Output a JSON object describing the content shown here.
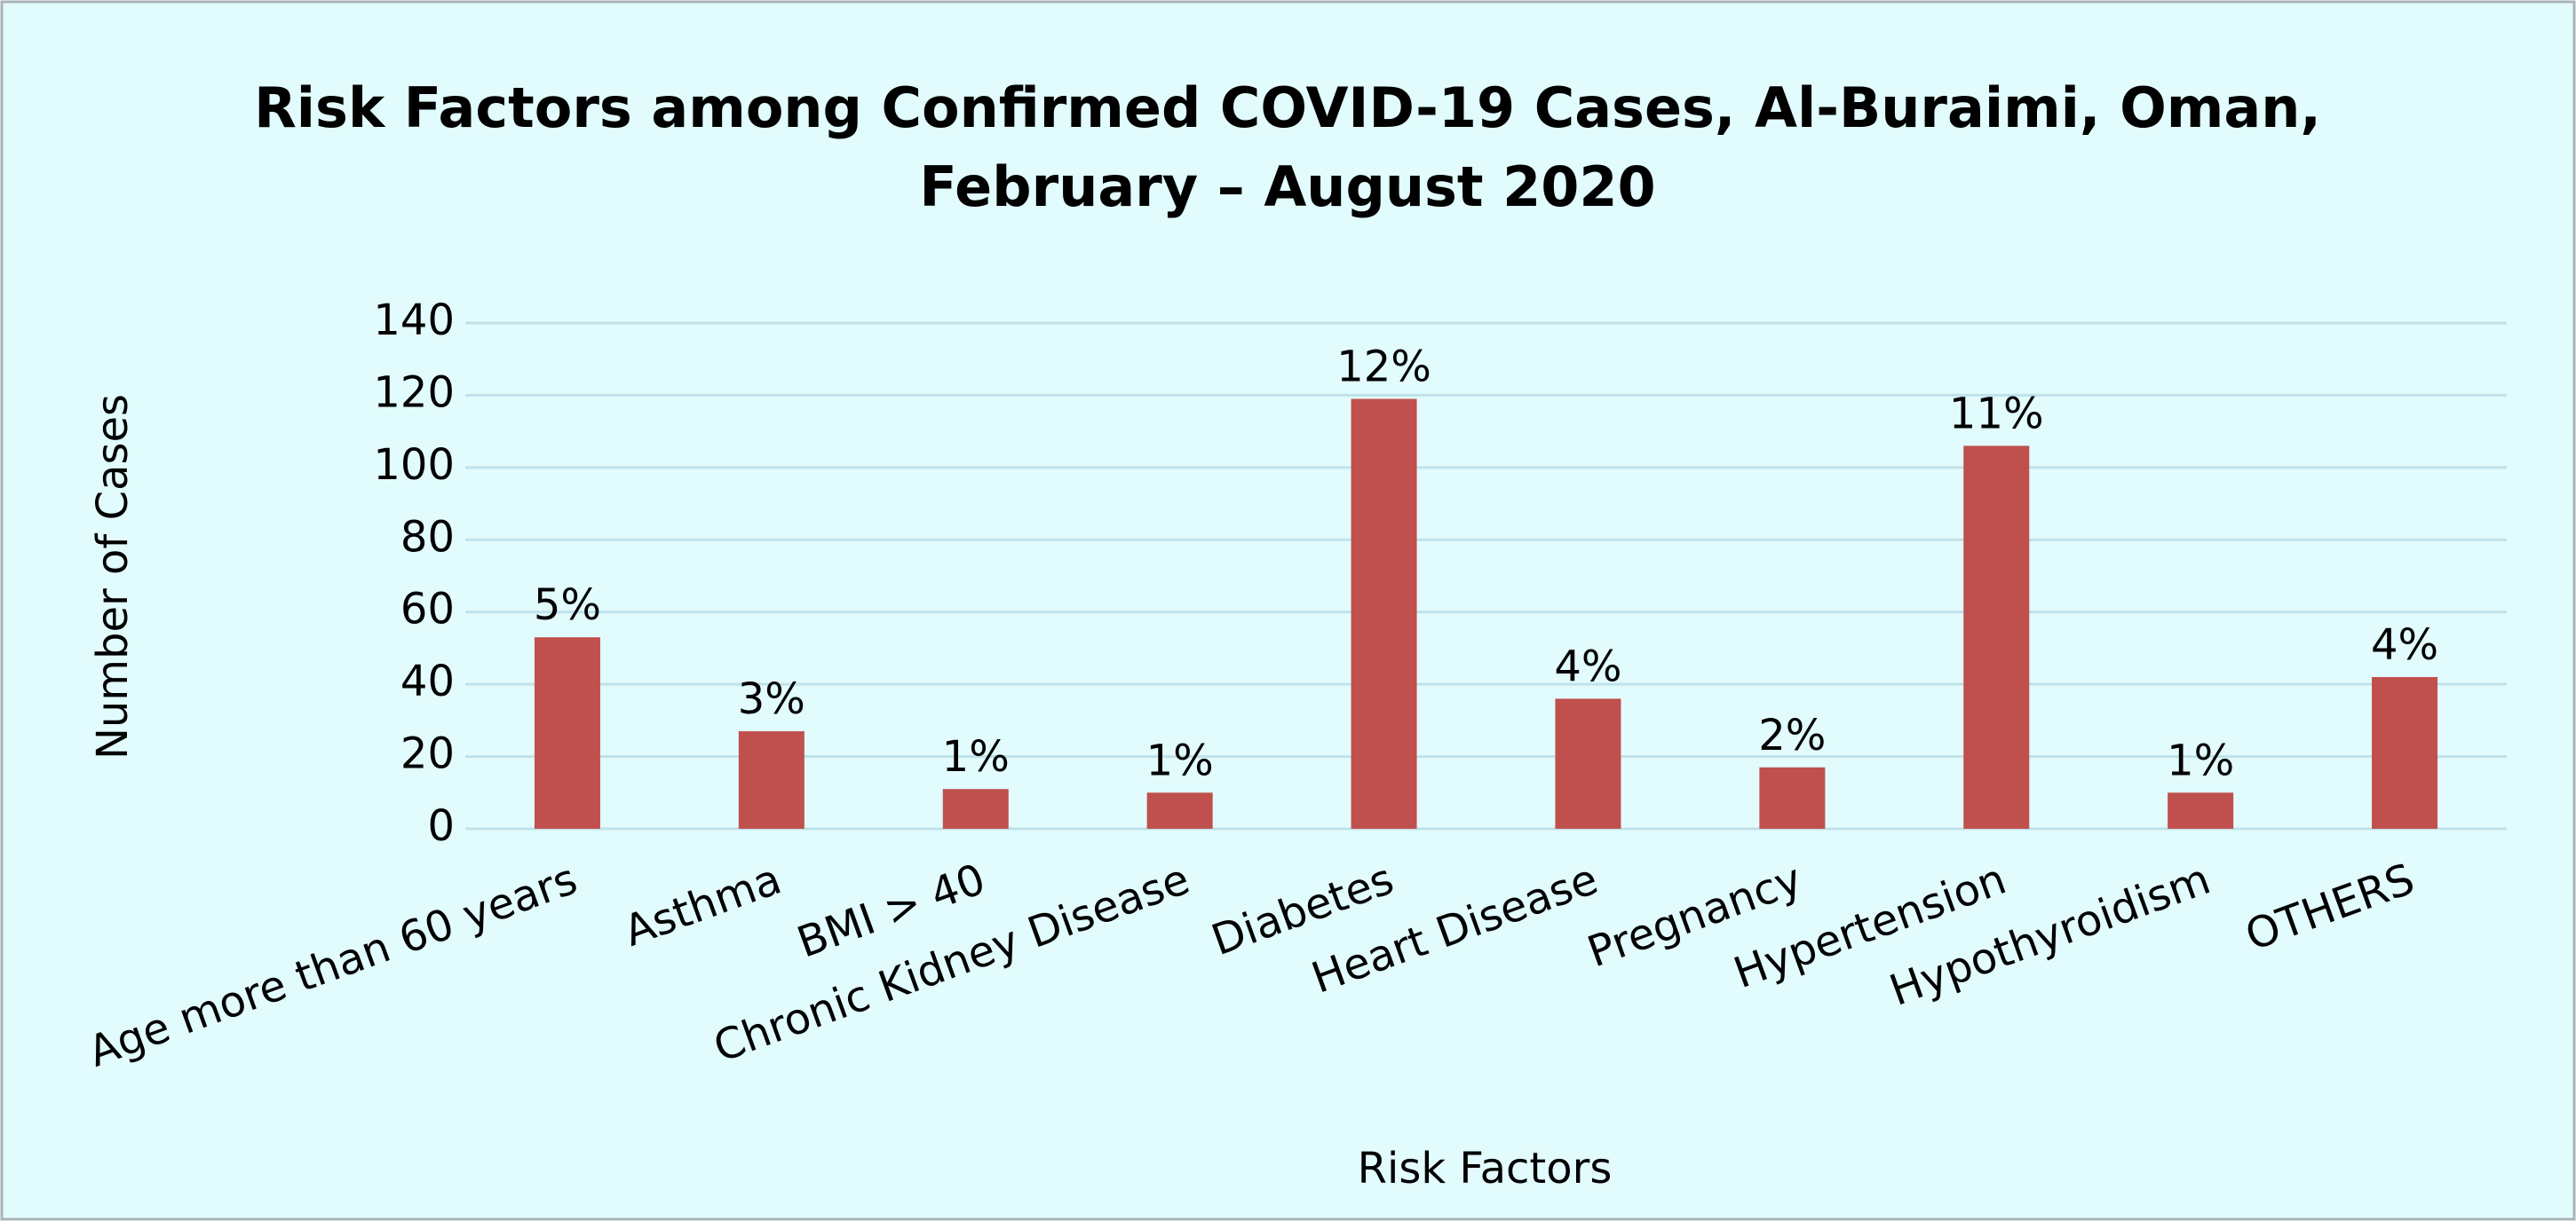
{
  "chart_data": {
    "type": "bar",
    "title": [
      "Risk Factors among Confirmed COVID-19 Cases, Al-Buraimi, Oman,",
      "February – August 2020"
    ],
    "x_label": "Risk Factors",
    "y_label": "Number of Cases",
    "categories": [
      "Age more than 60 years",
      "Asthma",
      "BMI > 40",
      "Chronic Kidney Disease",
      "Diabetes",
      "Heart Disease",
      "Pregnancy",
      "Hypertension",
      "Hypothyroidism",
      "OTHERS"
    ],
    "values": [
      53,
      27,
      11,
      10,
      119,
      36,
      17,
      106,
      10,
      42
    ],
    "value_labels": [
      "5%",
      "3%",
      "1%",
      "1%",
      "12%",
      "4%",
      "2%",
      "11%",
      "1%",
      "4%"
    ],
    "color": "#c0504d",
    "ylim": [
      0,
      140
    ],
    "yticks": [
      0,
      20,
      40,
      60,
      80,
      100,
      120,
      140
    ],
    "grid": true
  }
}
